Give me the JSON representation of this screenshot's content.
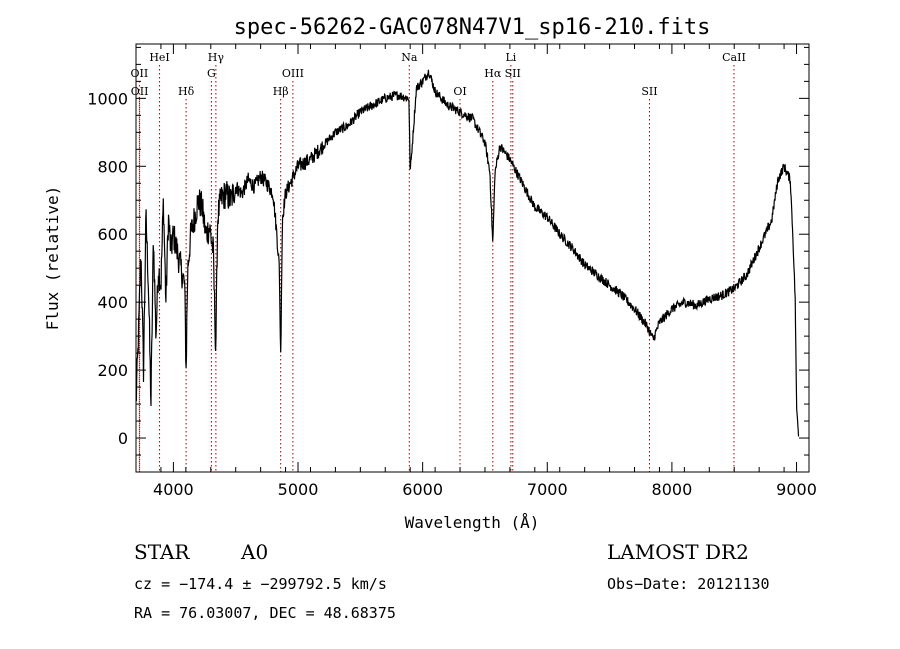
{
  "chart_data": {
    "type": "line",
    "title": "spec-56262-GAC078N47V1_sp16-210.fits",
    "xlabel": "Wavelength (Å)",
    "ylabel": "Flux (relative)",
    "xlim": [
      3700,
      9100
    ],
    "ylim": [
      -100,
      1160
    ],
    "x_ticks": [
      4000,
      5000,
      6000,
      7000,
      8000,
      9000
    ],
    "y_ticks": [
      0,
      200,
      400,
      600,
      800,
      1000
    ],
    "grid": false,
    "spectrum": {
      "x": [
        3700,
        3720,
        3740,
        3760,
        3780,
        3800,
        3820,
        3840,
        3860,
        3880,
        3900,
        3920,
        3940,
        3960,
        3980,
        4000,
        4030,
        4060,
        4090,
        4102,
        4115,
        4140,
        4170,
        4200,
        4230,
        4260,
        4290,
        4320,
        4340,
        4355,
        4380,
        4420,
        4460,
        4500,
        4550,
        4600,
        4650,
        4700,
        4750,
        4800,
        4830,
        4850,
        4861,
        4875,
        4900,
        4950,
        5000,
        5100,
        5200,
        5300,
        5400,
        5500,
        5600,
        5700,
        5800,
        5890,
        5900,
        5950,
        6000,
        6050,
        6100,
        6200,
        6300,
        6400,
        6500,
        6540,
        6563,
        6580,
        6620,
        6700,
        6800,
        6900,
        7000,
        7100,
        7200,
        7300,
        7400,
        7500,
        7600,
        7700,
        7800,
        7850,
        7900,
        8000,
        8100,
        8200,
        8300,
        8400,
        8500,
        8600,
        8700,
        8800,
        8850,
        8900,
        8950,
        8970,
        8990,
        9000,
        9020
      ],
      "y": [
        100,
        300,
        550,
        200,
        650,
        450,
        100,
        600,
        300,
        500,
        450,
        700,
        400,
        650,
        550,
        600,
        550,
        500,
        450,
        200,
        500,
        600,
        650,
        700,
        680,
        600,
        620,
        550,
        250,
        650,
        700,
        720,
        700,
        740,
        720,
        760,
        740,
        770,
        750,
        720,
        600,
        500,
        240,
        650,
        720,
        760,
        800,
        820,
        860,
        900,
        920,
        960,
        980,
        1000,
        1010,
        1000,
        780,
        1030,
        1050,
        1080,
        1020,
        980,
        960,
        940,
        870,
        780,
        570,
        780,
        860,
        820,
        750,
        680,
        650,
        600,
        560,
        510,
        480,
        450,
        420,
        380,
        330,
        290,
        340,
        380,
        400,
        390,
        410,
        420,
        440,
        480,
        560,
        640,
        760,
        800,
        760,
        600,
        400,
        90,
        0
      ]
    },
    "lines": [
      {
        "label": "HeI",
        "x": 3889,
        "row": 1
      },
      {
        "label": "OII",
        "x": 3727,
        "row": 2
      },
      {
        "label": "OII",
        "x": 3729,
        "row": 4
      },
      {
        "label": "Hγ",
        "x": 4341,
        "row": 1
      },
      {
        "label": "G",
        "x": 4305,
        "row": 2
      },
      {
        "label": "Hδ",
        "x": 4102,
        "row": 3
      },
      {
        "label": "OIII",
        "x": 4959,
        "row": 2
      },
      {
        "label": "Hβ",
        "x": 4861,
        "row": 3
      },
      {
        "label": "Na",
        "x": 5893,
        "row": 1
      },
      {
        "label": "OI",
        "x": 6300,
        "row": 3
      },
      {
        "label": "Li",
        "x": 6708,
        "row": 1
      },
      {
        "label": "Hα",
        "x": 6563,
        "row": 2
      },
      {
        "label": "SII",
        "x": 6723,
        "row": 2
      },
      {
        "label": "SII",
        "x": 7820,
        "row": 3
      },
      {
        "label": "CaII",
        "x": 8498,
        "row": 1
      }
    ],
    "colors": {
      "axis": "#000000",
      "spectrum": "#000000",
      "line_marker": "#a00000"
    }
  },
  "info": {
    "object_type": "STAR",
    "subclass": "A0",
    "survey": "LAMOST DR2",
    "redshift": "cz = −174.4 ± −299792.5 km/s",
    "obs_date": "Obs−Date: 20121130",
    "coords": "RA =  76.03007, DEC =  48.68375"
  }
}
